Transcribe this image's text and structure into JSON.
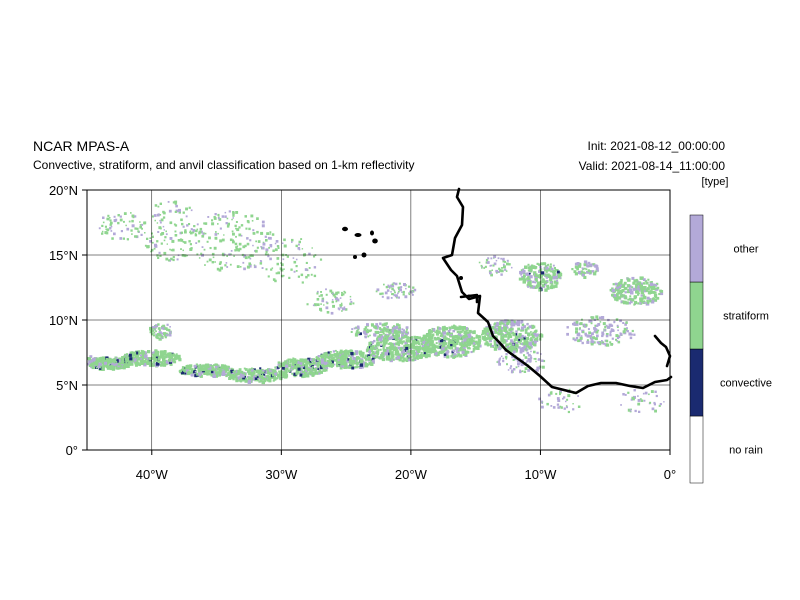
{
  "header": {
    "title": "NCAR MPAS-A",
    "subtitle": "Convective, stratiform, and anvil classification based on 1-km reflectivity",
    "init": "Init: 2021-08-12_00:00:00",
    "valid": "Valid: 2021-08-14_11:00:00"
  },
  "map": {
    "lon_range": [
      -45,
      0
    ],
    "lat_range": [
      0,
      20
    ],
    "lon_ticks": [
      -40,
      -30,
      -20,
      -10,
      0
    ],
    "lat_ticks": [
      0,
      5,
      10,
      15,
      20
    ],
    "lon_tick_labels": [
      "40°W",
      "30°W",
      "20°W",
      "10°W",
      "0°"
    ],
    "lat_tick_labels": [
      "0°",
      "5°N",
      "10°N",
      "15°N",
      "20°N"
    ],
    "grid": true
  },
  "colorbar": {
    "units": "[type]",
    "labels": [
      "no rain",
      "convective",
      "stratiform",
      "other"
    ],
    "colors": [
      "#ffffff",
      "#1a2a70",
      "#8fd58f",
      "#b3a9d8"
    ]
  },
  "colors": {
    "stratiform": "#8fd58f",
    "other": "#b3a9d8",
    "convective": "#1a2a70",
    "coastline": "#000000"
  }
}
